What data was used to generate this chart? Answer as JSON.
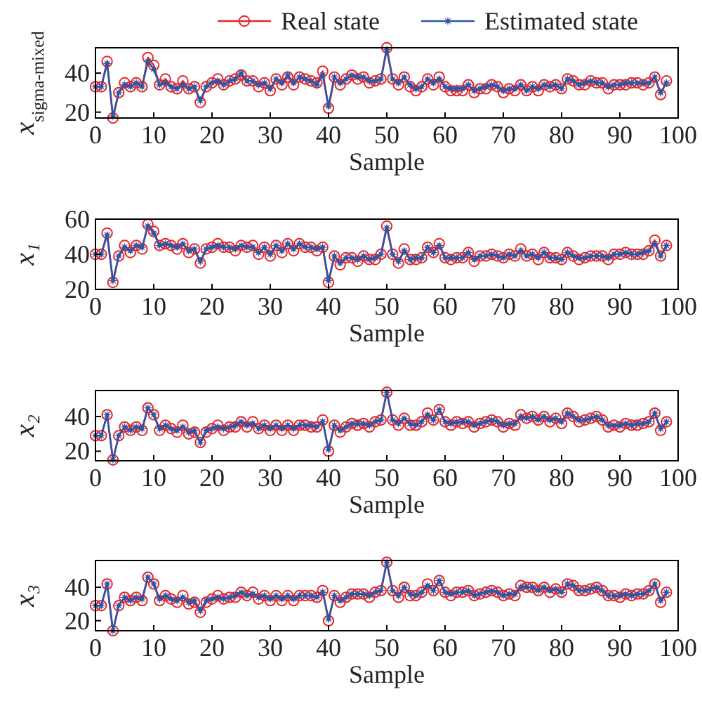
{
  "chart_data": [
    {
      "type": "line",
      "xlabel": "Sample",
      "ylabel": "x$_{sigma-mixed}$",
      "xlim": [
        0,
        100
      ],
      "xticks": [
        0,
        10,
        20,
        30,
        40,
        50,
        60,
        70,
        80,
        90,
        100
      ],
      "ylim": [
        17,
        53
      ],
      "yticks": [
        20,
        40
      ],
      "legend": "top",
      "x": [
        0,
        1,
        2,
        3,
        4,
        5,
        6,
        7,
        8,
        9,
        10,
        11,
        12,
        13,
        14,
        15,
        16,
        17,
        18,
        19,
        20,
        21,
        22,
        23,
        24,
        25,
        26,
        27,
        28,
        29,
        30,
        31,
        32,
        33,
        34,
        35,
        36,
        37,
        38,
        39,
        40,
        41,
        42,
        43,
        44,
        45,
        46,
        47,
        48,
        49,
        50,
        51,
        52,
        53,
        54,
        55,
        56,
        57,
        58,
        59,
        60,
        61,
        62,
        63,
        64,
        65,
        66,
        67,
        68,
        69,
        70,
        71,
        72,
        73,
        74,
        75,
        76,
        77,
        78,
        79,
        80,
        81,
        82,
        83,
        84,
        85,
        86,
        87,
        88,
        89,
        90,
        91,
        92,
        93,
        94,
        95,
        96,
        97,
        98
      ],
      "series": [
        {
          "name": "Real state",
          "color": "#e8262a",
          "marker": "circle",
          "values": [
            33,
            33,
            46,
            17,
            30,
            35,
            33,
            35,
            33,
            48,
            44,
            34,
            37,
            33,
            32,
            36,
            32,
            33,
            25,
            33,
            35,
            37,
            34,
            36,
            37,
            39,
            36,
            36,
            33,
            35,
            31,
            37,
            34,
            38,
            34,
            38,
            37,
            36,
            35,
            41,
            22,
            38,
            34,
            37,
            39,
            37,
            38,
            35,
            36,
            37,
            53,
            37,
            34,
            38,
            33,
            31,
            33,
            37,
            34,
            38,
            33,
            31,
            31,
            31,
            34,
            30,
            32,
            32,
            34,
            33,
            30,
            32,
            31,
            34,
            31,
            33,
            31,
            34,
            33,
            34,
            32,
            37,
            36,
            34,
            34,
            36,
            35,
            35,
            32,
            34,
            34,
            34,
            35,
            35,
            34,
            35,
            38,
            29,
            36
          ]
        },
        {
          "name": "Estimated state",
          "color": "#2f55a4",
          "marker": "star",
          "values": [
            33,
            33,
            45,
            18,
            30,
            34,
            33,
            35,
            33,
            46,
            42,
            34,
            35,
            33,
            32,
            34,
            32,
            33,
            26,
            33,
            35,
            36,
            34,
            36,
            37,
            40,
            36,
            36,
            34,
            35,
            32,
            37,
            35,
            39,
            35,
            38,
            37,
            36,
            34,
            39,
            23,
            38,
            35,
            37,
            39,
            38,
            38,
            36,
            36,
            37,
            52,
            37,
            35,
            38,
            34,
            32,
            33,
            37,
            35,
            37,
            33,
            32,
            32,
            32,
            34,
            31,
            32,
            33,
            34,
            33,
            31,
            32,
            32,
            34,
            31,
            33,
            32,
            34,
            33,
            34,
            32,
            37,
            36,
            34,
            35,
            36,
            35,
            35,
            33,
            34,
            34,
            35,
            35,
            35,
            35,
            35,
            38,
            30,
            35
          ]
        }
      ]
    },
    {
      "type": "line",
      "xlabel": "Sample",
      "ylabel": "x₁",
      "xlim": [
        0,
        100
      ],
      "xticks": [
        0,
        10,
        20,
        30,
        40,
        50,
        60,
        70,
        80,
        90,
        100
      ],
      "ylim": [
        20,
        60
      ],
      "yticks": [
        20,
        40,
        60
      ],
      "x": [
        0,
        1,
        2,
        3,
        4,
        5,
        6,
        7,
        8,
        9,
        10,
        11,
        12,
        13,
        14,
        15,
        16,
        17,
        18,
        19,
        20,
        21,
        22,
        23,
        24,
        25,
        26,
        27,
        28,
        29,
        30,
        31,
        32,
        33,
        34,
        35,
        36,
        37,
        38,
        39,
        40,
        41,
        42,
        43,
        44,
        45,
        46,
        47,
        48,
        49,
        50,
        51,
        52,
        53,
        54,
        55,
        56,
        57,
        58,
        59,
        60,
        61,
        62,
        63,
        64,
        65,
        66,
        67,
        68,
        69,
        70,
        71,
        72,
        73,
        74,
        75,
        76,
        77,
        78,
        79,
        80,
        81,
        82,
        83,
        84,
        85,
        86,
        87,
        88,
        89,
        90,
        91,
        92,
        93,
        94,
        95,
        96,
        97,
        98
      ],
      "series": [
        {
          "color": "#e8262a",
          "marker": "circle",
          "values": [
            40,
            40,
            52,
            24,
            39,
            45,
            41,
            45,
            43,
            57,
            53,
            45,
            46,
            45,
            43,
            46,
            41,
            43,
            35,
            43,
            44,
            46,
            44,
            44,
            42,
            45,
            44,
            45,
            40,
            44,
            39,
            45,
            41,
            46,
            42,
            46,
            44,
            44,
            42,
            44,
            24,
            39,
            34,
            38,
            38,
            36,
            39,
            37,
            37,
            40,
            56,
            40,
            35,
            43,
            37,
            37,
            38,
            44,
            41,
            46,
            38,
            37,
            38,
            38,
            41,
            36,
            39,
            39,
            40,
            39,
            38,
            40,
            39,
            43,
            39,
            40,
            37,
            41,
            38,
            38,
            37,
            41,
            39,
            37,
            38,
            39,
            39,
            39,
            37,
            40,
            40,
            41,
            40,
            40,
            40,
            42,
            48,
            39,
            45
          ]
        },
        {
          "color": "#2f55a4",
          "marker": "star",
          "values": [
            40,
            40,
            51,
            25,
            39,
            44,
            42,
            45,
            44,
            56,
            52,
            45,
            46,
            45,
            44,
            46,
            42,
            43,
            36,
            43,
            44,
            45,
            44,
            44,
            43,
            45,
            44,
            44,
            41,
            44,
            40,
            45,
            42,
            46,
            43,
            46,
            44,
            44,
            43,
            44,
            25,
            39,
            35,
            38,
            38,
            37,
            39,
            37,
            38,
            40,
            55,
            40,
            36,
            42,
            37,
            38,
            38,
            44,
            41,
            45,
            38,
            38,
            38,
            38,
            41,
            37,
            39,
            39,
            40,
            39,
            38,
            40,
            39,
            42,
            39,
            40,
            38,
            41,
            38,
            38,
            37,
            41,
            39,
            38,
            38,
            39,
            39,
            39,
            38,
            40,
            40,
            41,
            40,
            40,
            41,
            42,
            46,
            39,
            45
          ]
        }
      ]
    },
    {
      "type": "line",
      "xlabel": "Sample",
      "ylabel": "x₂",
      "xlim": [
        0,
        100
      ],
      "xticks": [
        0,
        10,
        20,
        30,
        40,
        50,
        60,
        70,
        80,
        90,
        100
      ],
      "ylim": [
        14.5,
        55
      ],
      "yticks": [
        20,
        40
      ],
      "x": [
        0,
        1,
        2,
        3,
        4,
        5,
        6,
        7,
        8,
        9,
        10,
        11,
        12,
        13,
        14,
        15,
        16,
        17,
        18,
        19,
        20,
        21,
        22,
        23,
        24,
        25,
        26,
        27,
        28,
        29,
        30,
        31,
        32,
        33,
        34,
        35,
        36,
        37,
        38,
        39,
        40,
        41,
        42,
        43,
        44,
        45,
        46,
        47,
        48,
        49,
        50,
        51,
        52,
        53,
        54,
        55,
        56,
        57,
        58,
        59,
        60,
        61,
        62,
        63,
        64,
        65,
        66,
        67,
        68,
        69,
        70,
        71,
        72,
        73,
        74,
        75,
        76,
        77,
        78,
        79,
        80,
        81,
        82,
        83,
        84,
        85,
        86,
        87,
        88,
        89,
        90,
        91,
        92,
        93,
        94,
        95,
        96,
        97,
        98
      ],
      "series": [
        {
          "color": "#e8262a",
          "marker": "circle",
          "values": [
            29,
            29,
            41,
            15,
            29,
            34,
            32,
            34,
            32,
            45,
            41,
            32,
            35,
            33,
            31,
            35,
            30,
            31,
            25,
            31,
            33,
            35,
            32,
            34,
            34,
            37,
            34,
            37,
            33,
            35,
            32,
            35,
            32,
            35,
            32,
            35,
            35,
            34,
            34,
            38,
            20,
            35,
            31,
            34,
            36,
            35,
            36,
            34,
            37,
            38,
            54,
            38,
            35,
            39,
            35,
            35,
            37,
            42,
            38,
            44,
            37,
            35,
            37,
            36,
            37,
            34,
            36,
            37,
            38,
            37,
            34,
            36,
            35,
            41,
            39,
            40,
            38,
            40,
            37,
            39,
            36,
            42,
            40,
            37,
            38,
            39,
            40,
            38,
            34,
            35,
            34,
            36,
            35,
            35,
            36,
            37,
            42,
            32,
            37
          ]
        },
        {
          "color": "#2f55a4",
          "marker": "star",
          "values": [
            29,
            29,
            41,
            15,
            29,
            34,
            32,
            34,
            33,
            45,
            41,
            33,
            35,
            33,
            32,
            34,
            31,
            32,
            25,
            32,
            33,
            34,
            33,
            34,
            35,
            37,
            35,
            36,
            33,
            35,
            33,
            35,
            33,
            35,
            33,
            35,
            35,
            35,
            34,
            37,
            21,
            35,
            32,
            34,
            36,
            36,
            36,
            35,
            37,
            38,
            54,
            38,
            36,
            39,
            36,
            35,
            37,
            41,
            38,
            44,
            37,
            36,
            37,
            37,
            37,
            35,
            36,
            37,
            38,
            37,
            35,
            36,
            36,
            40,
            39,
            40,
            38,
            40,
            38,
            39,
            37,
            42,
            40,
            38,
            38,
            39,
            40,
            38,
            35,
            35,
            35,
            36,
            35,
            36,
            36,
            37,
            42,
            33,
            37
          ]
        }
      ]
    },
    {
      "type": "line",
      "xlabel": "Sample",
      "ylabel": "x₃",
      "xlim": [
        0,
        100
      ],
      "xticks": [
        0,
        10,
        20,
        30,
        40,
        50,
        60,
        70,
        80,
        90,
        100
      ],
      "ylim": [
        14,
        56
      ],
      "yticks": [
        20,
        40
      ],
      "x": [
        0,
        1,
        2,
        3,
        4,
        5,
        6,
        7,
        8,
        9,
        10,
        11,
        12,
        13,
        14,
        15,
        16,
        17,
        18,
        19,
        20,
        21,
        22,
        23,
        24,
        25,
        26,
        27,
        28,
        29,
        30,
        31,
        32,
        33,
        34,
        35,
        36,
        37,
        38,
        39,
        40,
        41,
        42,
        43,
        44,
        45,
        46,
        47,
        48,
        49,
        50,
        51,
        52,
        53,
        54,
        55,
        56,
        57,
        58,
        59,
        60,
        61,
        62,
        63,
        64,
        65,
        66,
        67,
        68,
        69,
        70,
        71,
        72,
        73,
        74,
        75,
        76,
        77,
        78,
        79,
        80,
        81,
        82,
        83,
        84,
        85,
        86,
        87,
        88,
        89,
        90,
        91,
        92,
        93,
        94,
        95,
        96,
        97,
        98
      ],
      "series": [
        {
          "color": "#e8262a",
          "marker": "circle",
          "values": [
            29,
            29,
            42,
            14,
            29,
            34,
            32,
            34,
            32,
            46,
            42,
            32,
            35,
            33,
            31,
            35,
            30,
            31,
            25,
            31,
            33,
            35,
            33,
            34,
            34,
            37,
            35,
            37,
            33,
            35,
            32,
            35,
            32,
            35,
            32,
            35,
            35,
            35,
            34,
            38,
            20,
            35,
            31,
            34,
            36,
            36,
            36,
            34,
            37,
            38,
            55,
            38,
            34,
            40,
            35,
            35,
            37,
            42,
            38,
            44,
            37,
            35,
            37,
            37,
            38,
            35,
            36,
            37,
            38,
            37,
            35,
            36,
            35,
            41,
            40,
            40,
            38,
            40,
            37,
            39,
            37,
            42,
            41,
            38,
            38,
            39,
            40,
            38,
            35,
            35,
            34,
            36,
            35,
            36,
            36,
            38,
            42,
            31,
            37
          ]
        },
        {
          "color": "#2f55a4",
          "marker": "star",
          "values": [
            29,
            29,
            42,
            14,
            29,
            34,
            32,
            34,
            33,
            46,
            42,
            33,
            35,
            33,
            32,
            34,
            31,
            32,
            26,
            32,
            33,
            34,
            33,
            34,
            35,
            37,
            35,
            36,
            34,
            35,
            33,
            35,
            33,
            35,
            33,
            35,
            35,
            35,
            34,
            37,
            21,
            35,
            32,
            34,
            36,
            36,
            36,
            35,
            37,
            38,
            55,
            38,
            35,
            40,
            36,
            35,
            37,
            41,
            38,
            44,
            37,
            36,
            37,
            37,
            38,
            35,
            36,
            37,
            38,
            37,
            35,
            36,
            36,
            40,
            40,
            40,
            38,
            40,
            38,
            39,
            37,
            42,
            41,
            38,
            38,
            39,
            40,
            38,
            35,
            35,
            35,
            36,
            35,
            36,
            36,
            38,
            42,
            32,
            37
          ]
        }
      ]
    }
  ]
}
